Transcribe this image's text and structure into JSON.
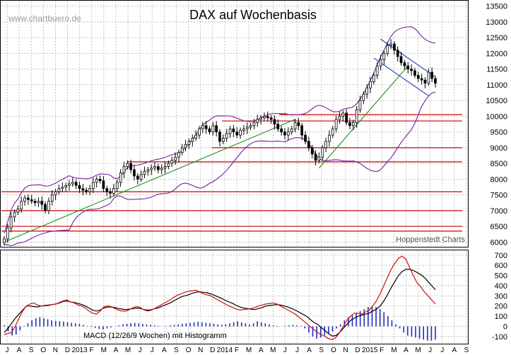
{
  "chart_data": [
    {
      "type": "candlestick",
      "title": "DAX auf Wochenbasis",
      "watermark": "www.chartbuero.de",
      "source": "Hoppenstedt Charts",
      "y_ticks": [
        6000,
        6500,
        7000,
        7500,
        8000,
        8500,
        9000,
        9500,
        10000,
        10500,
        11000,
        11500,
        12000,
        12500,
        13000,
        13500
      ],
      "ylim": [
        5850,
        13650
      ],
      "x_ticks": [
        "J",
        "A",
        "S",
        "O",
        "N",
        "D",
        "2013",
        "F",
        "M",
        "A",
        "M",
        "J",
        "J",
        "A",
        "S",
        "O",
        "N",
        "D",
        "2014",
        "F",
        "M",
        "A",
        "M",
        "J",
        "J",
        "A",
        "S",
        "O",
        "N",
        "D",
        "2015",
        "F",
        "M",
        "A",
        "M",
        "J",
        "J",
        "A",
        "S"
      ],
      "weekly_close": [
        6100,
        6450,
        6800,
        6950,
        7050,
        7300,
        7400,
        7350,
        7300,
        7250,
        7300,
        7200,
        7000,
        7300,
        7500,
        7600,
        7700,
        7750,
        7800,
        7850,
        7900,
        7800,
        7700,
        7650,
        7600,
        7700,
        7900,
        8000,
        7950,
        7700,
        7600,
        7550,
        7700,
        7900,
        8200,
        8400,
        8500,
        8300,
        8100,
        8000,
        8150,
        8250,
        8300,
        8350,
        8400,
        8300,
        8350,
        8400,
        8500,
        8600,
        8700,
        8850,
        9000,
        9100,
        9200,
        9300,
        9400,
        9600,
        9700,
        9600,
        9500,
        9700,
        9500,
        9200,
        9300,
        9450,
        9600,
        9500,
        9400,
        9550,
        9600,
        9650,
        9700,
        9800,
        9900,
        9950,
        10000,
        9950,
        9900,
        9750,
        9600,
        9500,
        9400,
        9500,
        9600,
        9800,
        9700,
        9400,
        9200,
        9000,
        8800,
        8600,
        8700,
        9000,
        9200,
        9400,
        9600,
        9900,
        10000,
        10100,
        9800,
        9700,
        9800,
        10200,
        10500,
        10700,
        10900,
        11100,
        11300,
        11600,
        11800,
        12000,
        12250,
        12300,
        12100,
        11900,
        11700,
        11600,
        11500,
        11450,
        11300,
        11200,
        11150,
        11050,
        11400,
        11200,
        11050
      ],
      "lines": [
        {
          "name": "rising trendline 2012",
          "points": [
            [
              0,
              6000
            ],
            [
              85,
              9900
            ]
          ]
        },
        {
          "name": "rising trendline 2014",
          "points": [
            [
              92,
              8350
            ],
            [
              118,
              11600
            ]
          ]
        },
        {
          "name": "falling channel upper",
          "points": [
            [
              110,
              12450
            ],
            [
              126,
              11250
            ]
          ]
        },
        {
          "name": "falling channel lower",
          "points": [
            [
              108,
              11850
            ],
            [
              124,
              10650
            ]
          ]
        }
      ],
      "horizontal_levels": [
        6350,
        6500,
        7000,
        7600,
        8550,
        9000,
        9850,
        10050
      ]
    },
    {
      "type": "line",
      "label": "MACD (12/26/9 Wochen) mit Histogramm",
      "y_ticks": [
        -100,
        0,
        100,
        200,
        300,
        400,
        500,
        600,
        700
      ],
      "ylim": [
        -170,
        740
      ],
      "series": [
        {
          "values": [
            -60,
            -20,
            30,
            80,
            120,
            160,
            200,
            200,
            195,
            190,
            200,
            205,
            210,
            215,
            220,
            230,
            245,
            250,
            240,
            235,
            225,
            215,
            200,
            180,
            160,
            150,
            160,
            180,
            190,
            190,
            185,
            175,
            170,
            165,
            170,
            175,
            180,
            175,
            165,
            160,
            165,
            175,
            185,
            200,
            215,
            230,
            250,
            270,
            290,
            300,
            310,
            325,
            335,
            340,
            335,
            330,
            320,
            305,
            290,
            275,
            255,
            240,
            225,
            205,
            190,
            180,
            175,
            170,
            165,
            175,
            185,
            200,
            205,
            210,
            215,
            210,
            200,
            190,
            175,
            160,
            140,
            120,
            100,
            70,
            40,
            20,
            -10,
            -40,
            -70,
            -95,
            -90,
            -60,
            -20,
            20,
            60,
            80,
            100,
            110,
            120,
            130,
            150,
            170,
            200,
            250,
            310,
            380,
            440,
            500,
            540,
            560,
            560,
            550,
            530,
            510,
            480,
            440,
            400,
            360
          ]
        },
        {
          "values": [
            -80,
            -70,
            -60,
            0,
            80,
            150,
            200,
            220,
            230,
            210,
            200,
            200,
            205,
            215,
            220,
            235,
            250,
            260,
            240,
            230,
            210,
            200,
            180,
            150,
            130,
            120,
            150,
            190,
            200,
            195,
            175,
            160,
            150,
            150,
            165,
            185,
            195,
            185,
            160,
            150,
            160,
            180,
            200,
            220,
            240,
            260,
            285,
            305,
            320,
            335,
            345,
            350,
            355,
            340,
            320,
            310,
            300,
            280,
            260,
            240,
            220,
            200,
            185,
            170,
            160,
            165,
            170,
            175,
            185,
            200,
            210,
            220,
            225,
            230,
            220,
            200,
            180,
            160,
            140,
            120,
            90,
            60,
            30,
            0,
            -30,
            -60,
            -80,
            -100,
            -120,
            -130,
            -110,
            -60,
            0,
            60,
            100,
            130,
            130,
            120,
            140,
            160,
            200,
            250,
            320,
            400,
            480,
            560,
            620,
            670,
            690,
            660,
            580,
            500,
            430,
            390,
            340,
            300,
            260,
            220
          ]
        }
      ],
      "histogram": [
        12,
        -50,
        -90,
        -80,
        -40,
        5,
        30,
        60,
        80,
        90,
        80,
        70,
        60,
        55,
        50,
        45,
        40,
        35,
        30,
        25,
        15,
        5,
        -5,
        -15,
        -25,
        -30,
        -20,
        -10,
        0,
        10,
        20,
        25,
        30,
        35,
        30,
        25,
        20,
        15,
        10,
        5,
        0,
        5,
        10,
        15,
        20,
        25,
        30,
        35,
        40,
        45,
        40,
        35,
        30,
        25,
        20,
        15,
        20,
        30,
        40,
        50,
        40,
        30,
        20,
        30,
        50,
        40,
        30,
        20,
        10,
        5,
        0,
        5,
        10,
        15,
        10,
        5,
        -20,
        -60,
        -100,
        -120,
        -110,
        -90,
        -70,
        -50,
        -20,
        20,
        60,
        90,
        110,
        130,
        150,
        170,
        190,
        200,
        190,
        170,
        140,
        100,
        60,
        20,
        -20,
        -60,
        -90,
        -100,
        -110,
        -120,
        -130,
        -140,
        -140,
        -130
      ]
    }
  ]
}
